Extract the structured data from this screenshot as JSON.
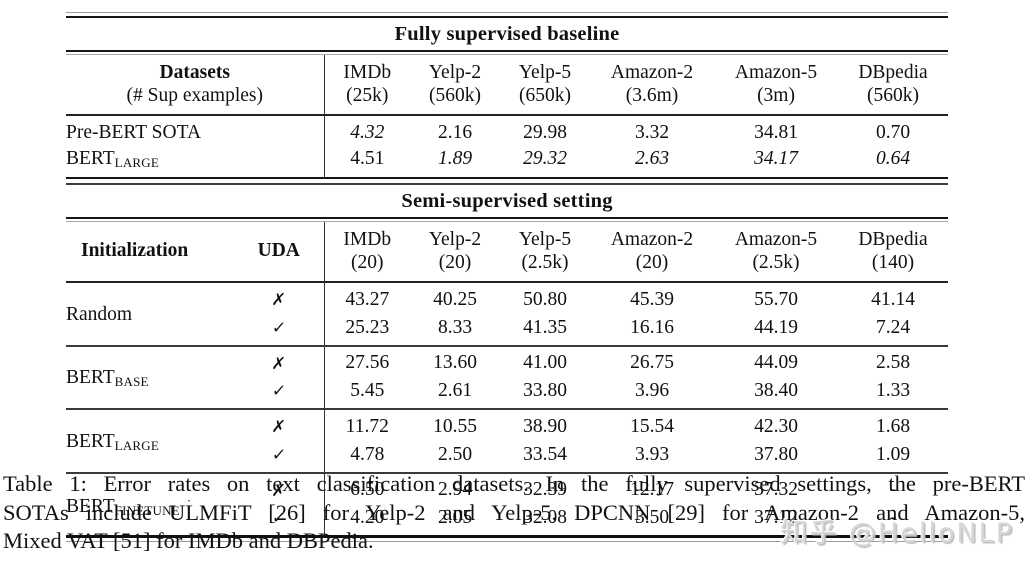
{
  "colors": {
    "text": "#111111",
    "rule": "#1a1a1a",
    "watermark": "#d6d6d6"
  },
  "glyphs": {
    "cross": "✗",
    "check": "✓"
  },
  "table": {
    "fully_supervised": {
      "title": "Fully supervised baseline",
      "header": {
        "col1_top": "Datasets",
        "col1_bottom": "(# Sup examples)",
        "datasets": [
          {
            "name": "IMDb",
            "size": "(25k)"
          },
          {
            "name": "Yelp-2",
            "size": "(560k)"
          },
          {
            "name": "Yelp-5",
            "size": "(650k)"
          },
          {
            "name": "Amazon-2",
            "size": "(3.6m)"
          },
          {
            "name": "Amazon-5",
            "size": "(3m)"
          },
          {
            "name": "DBpedia",
            "size": "(560k)"
          }
        ]
      },
      "rows": [
        {
          "label": {
            "text": "Pre-BERT SOTA"
          },
          "cells": [
            {
              "t": "4.32",
              "i": 1
            },
            {
              "t": "2.16"
            },
            {
              "t": "29.98"
            },
            {
              "t": "3.32"
            },
            {
              "t": "34.81"
            },
            {
              "t": "0.70"
            }
          ]
        },
        {
          "label": {
            "base": "BERT",
            "sub": "LARGE"
          },
          "cells": [
            {
              "t": "4.51"
            },
            {
              "t": "1.89",
              "i": 1
            },
            {
              "t": "29.32",
              "i": 1
            },
            {
              "t": "2.63",
              "i": 1
            },
            {
              "t": "34.17",
              "i": 1
            },
            {
              "t": "0.64",
              "i": 1
            }
          ]
        }
      ]
    },
    "semi_supervised": {
      "title": "Semi-supervised setting",
      "header": {
        "init": "Initialization",
        "uda": "UDA",
        "datasets": [
          {
            "name": "IMDb",
            "size": "(20)"
          },
          {
            "name": "Yelp-2",
            "size": "(20)"
          },
          {
            "name": "Yelp-5",
            "size": "(2.5k)"
          },
          {
            "name": "Amazon-2",
            "size": "(20)"
          },
          {
            "name": "Amazon-5",
            "size": "(2.5k)"
          },
          {
            "name": "DBpedia",
            "size": "(140)"
          }
        ]
      },
      "groups": [
        {
          "label": {
            "text": "Random"
          },
          "rows": [
            {
              "uda": "cross",
              "cells": [
                {
                  "t": "43.27"
                },
                {
                  "t": "40.25"
                },
                {
                  "t": "50.80"
                },
                {
                  "t": "45.39"
                },
                {
                  "t": "55.70"
                },
                {
                  "t": "41.14"
                }
              ]
            },
            {
              "uda": "check",
              "cells": [
                {
                  "t": "25.23"
                },
                {
                  "t": "8.33"
                },
                {
                  "t": "41.35"
                },
                {
                  "t": "16.16"
                },
                {
                  "t": "44.19"
                },
                {
                  "t": "7.24"
                }
              ]
            }
          ]
        },
        {
          "label": {
            "base": "BERT",
            "sub": "BASE"
          },
          "rows": [
            {
              "uda": "cross",
              "cells": [
                {
                  "t": "27.56"
                },
                {
                  "t": "13.60"
                },
                {
                  "t": "41.00"
                },
                {
                  "t": "26.75"
                },
                {
                  "t": "44.09"
                },
                {
                  "t": "2.58"
                }
              ]
            },
            {
              "uda": "check",
              "cells": [
                {
                  "t": "5.45"
                },
                {
                  "t": "2.61"
                },
                {
                  "t": "33.80"
                },
                {
                  "t": "3.96"
                },
                {
                  "t": "38.40"
                },
                {
                  "t": "1.33"
                }
              ]
            }
          ]
        },
        {
          "label": {
            "base": "BERT",
            "sub": "LARGE"
          },
          "rows": [
            {
              "uda": "cross",
              "cells": [
                {
                  "t": "11.72"
                },
                {
                  "t": "10.55"
                },
                {
                  "t": "38.90"
                },
                {
                  "t": "15.54"
                },
                {
                  "t": "42.30"
                },
                {
                  "t": "1.68"
                }
              ]
            },
            {
              "uda": "check",
              "cells": [
                {
                  "t": "4.78"
                },
                {
                  "t": "2.50"
                },
                {
                  "t": "33.54"
                },
                {
                  "t": "3.93"
                },
                {
                  "t": "37.80"
                },
                {
                  "t": "1.09"
                }
              ]
            }
          ]
        },
        {
          "label": {
            "base": "BERT",
            "sub": "FINETUNE",
            "suffix": "·"
          },
          "rows": [
            {
              "uda": "cross",
              "cells": [
                {
                  "t": "6.50"
                },
                {
                  "t": "2.94"
                },
                {
                  "t": "32.39"
                },
                {
                  "t": "12.17"
                },
                {
                  "t": "37.32"
                },
                {
                  "t": "-"
                }
              ]
            },
            {
              "uda": "check",
              "cells": [
                {
                  "t": "4.20",
                  "b": 1
                },
                {
                  "t": "2.05",
                  "b": 1
                },
                {
                  "t": "32.08",
                  "b": 1
                },
                {
                  "t": "3.50",
                  "b": 1
                },
                {
                  "t": "37.12",
                  "b": 1
                },
                {
                  "t": "-"
                }
              ]
            }
          ]
        }
      ]
    }
  },
  "caption": {
    "lines": [
      "Table 1: Error rates on text classification datasets. In the fully supervised settings, the pre-BERT",
      "SOTAs include ULMFiT [26] for Yelp-2 and Yelp-5, DPCNN [29] for Amazon-2 and Amazon-5,",
      "Mixed VAT [51] for IMDb and DBPedia."
    ]
  },
  "watermark": {
    "text": "知乎 @HelloNLP"
  }
}
